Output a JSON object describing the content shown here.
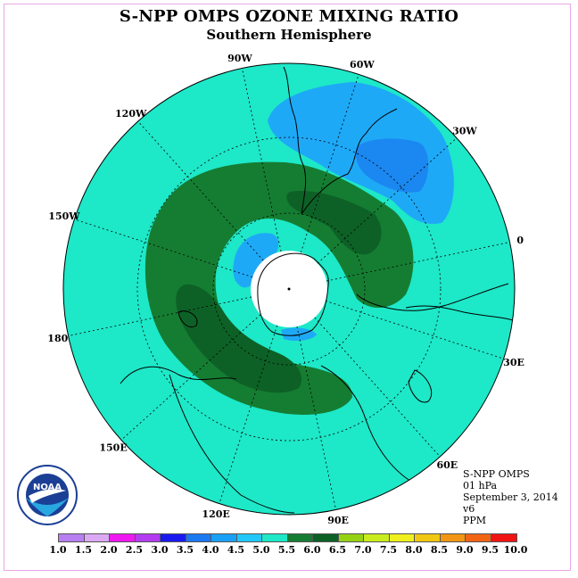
{
  "header": {
    "title": "S-NPP OMPS OZONE MIXING RATIO",
    "subtitle": "Southern Hemisphere"
  },
  "map": {
    "projection": "south-polar-stereographic",
    "longitude_labels": [
      "90W",
      "60W",
      "30W",
      "0",
      "30E",
      "60E",
      "90E",
      "120E",
      "150E",
      "180",
      "150W",
      "120W"
    ],
    "colors": {
      "background_field": "#1de8c8",
      "mid_blue": "#1ea9f7",
      "deep_blue": "#1b87f0",
      "green_5_5": "#157d32",
      "green_6_0": "#0d6126",
      "pole_mask": "#ffffff"
    }
  },
  "info": {
    "instrument": "S-NPP OMPS",
    "level": "01 hPa",
    "date": "September 3, 2014",
    "version": "v6",
    "units": "PPM"
  },
  "logo": {
    "icon": "noaa-logo-icon",
    "text": "NOAA"
  },
  "colorbar": {
    "ticks": [
      "1.0",
      "1.5",
      "2.0",
      "2.5",
      "3.0",
      "3.5",
      "4.0",
      "4.5",
      "5.0",
      "5.5",
      "6.0",
      "6.5",
      "7.0",
      "7.5",
      "8.0",
      "8.5",
      "9.0",
      "9.5",
      "10.0"
    ],
    "colors": [
      "#b77ff0",
      "#dca9f5",
      "#f018f0",
      "#b43cf0",
      "#1a1af0",
      "#1c78f0",
      "#1aa0f5",
      "#22c8fa",
      "#1de8c8",
      "#157d32",
      "#0d6126",
      "#96d214",
      "#c8ec1e",
      "#f0f01e",
      "#f0c814",
      "#f09614",
      "#f06414",
      "#f01414",
      "#8c5a3c"
    ]
  }
}
